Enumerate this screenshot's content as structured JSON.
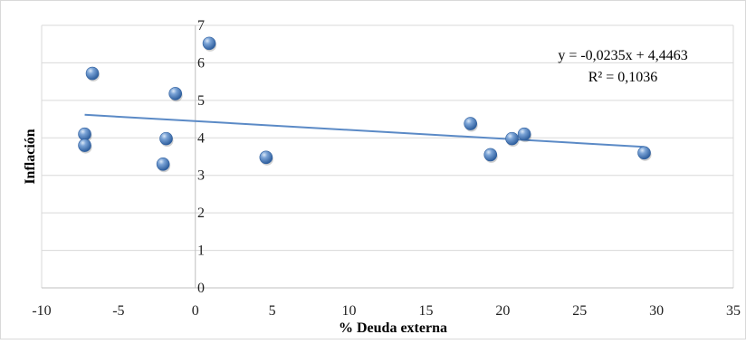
{
  "chart_data": {
    "type": "scatter",
    "title": "",
    "xlabel": "% Deuda externa",
    "ylabel": "Inflación",
    "xlim": [
      -10,
      35
    ],
    "ylim": [
      0,
      7
    ],
    "xticks": [
      "-10",
      "-5",
      "0",
      "5",
      "10",
      "15",
      "20",
      "25",
      "30",
      "35"
    ],
    "yticks": [
      "0",
      "1",
      "2",
      "3",
      "4",
      "5",
      "6",
      "7"
    ],
    "grid": "horizontal",
    "legend": "none",
    "points": [
      {
        "x": -6.7,
        "y": 5.72
      },
      {
        "x": -7.2,
        "y": 4.1
      },
      {
        "x": -7.2,
        "y": 3.8
      },
      {
        "x": -1.3,
        "y": 5.18
      },
      {
        "x": -1.9,
        "y": 3.98
      },
      {
        "x": -2.1,
        "y": 3.3
      },
      {
        "x": 0.9,
        "y": 6.52
      },
      {
        "x": 4.6,
        "y": 3.48
      },
      {
        "x": 17.9,
        "y": 4.38
      },
      {
        "x": 19.2,
        "y": 3.55
      },
      {
        "x": 20.6,
        "y": 3.98
      },
      {
        "x": 21.4,
        "y": 4.1
      },
      {
        "x": 29.2,
        "y": 3.6
      }
    ],
    "trendline": {
      "slope": -0.0235,
      "intercept": 4.4463,
      "x_range": [
        -7.2,
        29.2
      ],
      "equation": "y = -0,0235x + 4,4463",
      "r_squared": "R² = 0,1036"
    },
    "colors": {
      "marker": "#4f81bd",
      "trendline": "#5b8ac6",
      "grid": "#d9d9d9",
      "axis": "#bfbfbf"
    }
  }
}
